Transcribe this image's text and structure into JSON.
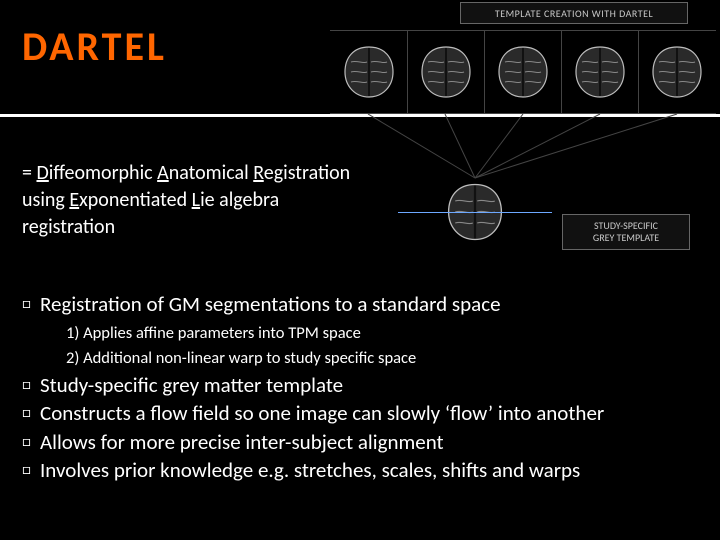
{
  "title": "DARTEL",
  "definition_parts": {
    "p1": "= ",
    "d": "D",
    "p2": "iffeomorphic ",
    "a": "A",
    "p3": "natomical ",
    "r": "R",
    "p4": "egistration using ",
    "e": "E",
    "p5": "xponentiated ",
    "l": "L",
    "p6": "ie algebra registration"
  },
  "top_label": "TEMPLATE CREATION WITH DARTEL",
  "right_label_line1": "STUDY-SPECIFIC",
  "right_label_line2": "GREY TEMPLATE",
  "bullets": {
    "b1": "Registration of GM segmentations to a standard space",
    "b1_s1": "1) Applies affine parameters into TPM space",
    "b1_s2": "2) Additional non-linear warp to study specific space",
    "b2": "Study-specific grey matter template",
    "b3": "Constructs a flow field so one image can slowly ‘flow’ into another",
    "b4": "Allows for more precise inter-subject alignment",
    "b5": "Involves prior knowledge e.g. stretches, scales, shifts and warps"
  },
  "bullet_mark": "□",
  "style": {
    "title_color": "#ff6600",
    "bg": "#000000",
    "text": "#ffffff",
    "brain_stroke": "#bdbdbd",
    "brain_fill": "#2a2a2a",
    "line_color": "#6da8ff"
  },
  "brain_row": {
    "count": 5
  }
}
